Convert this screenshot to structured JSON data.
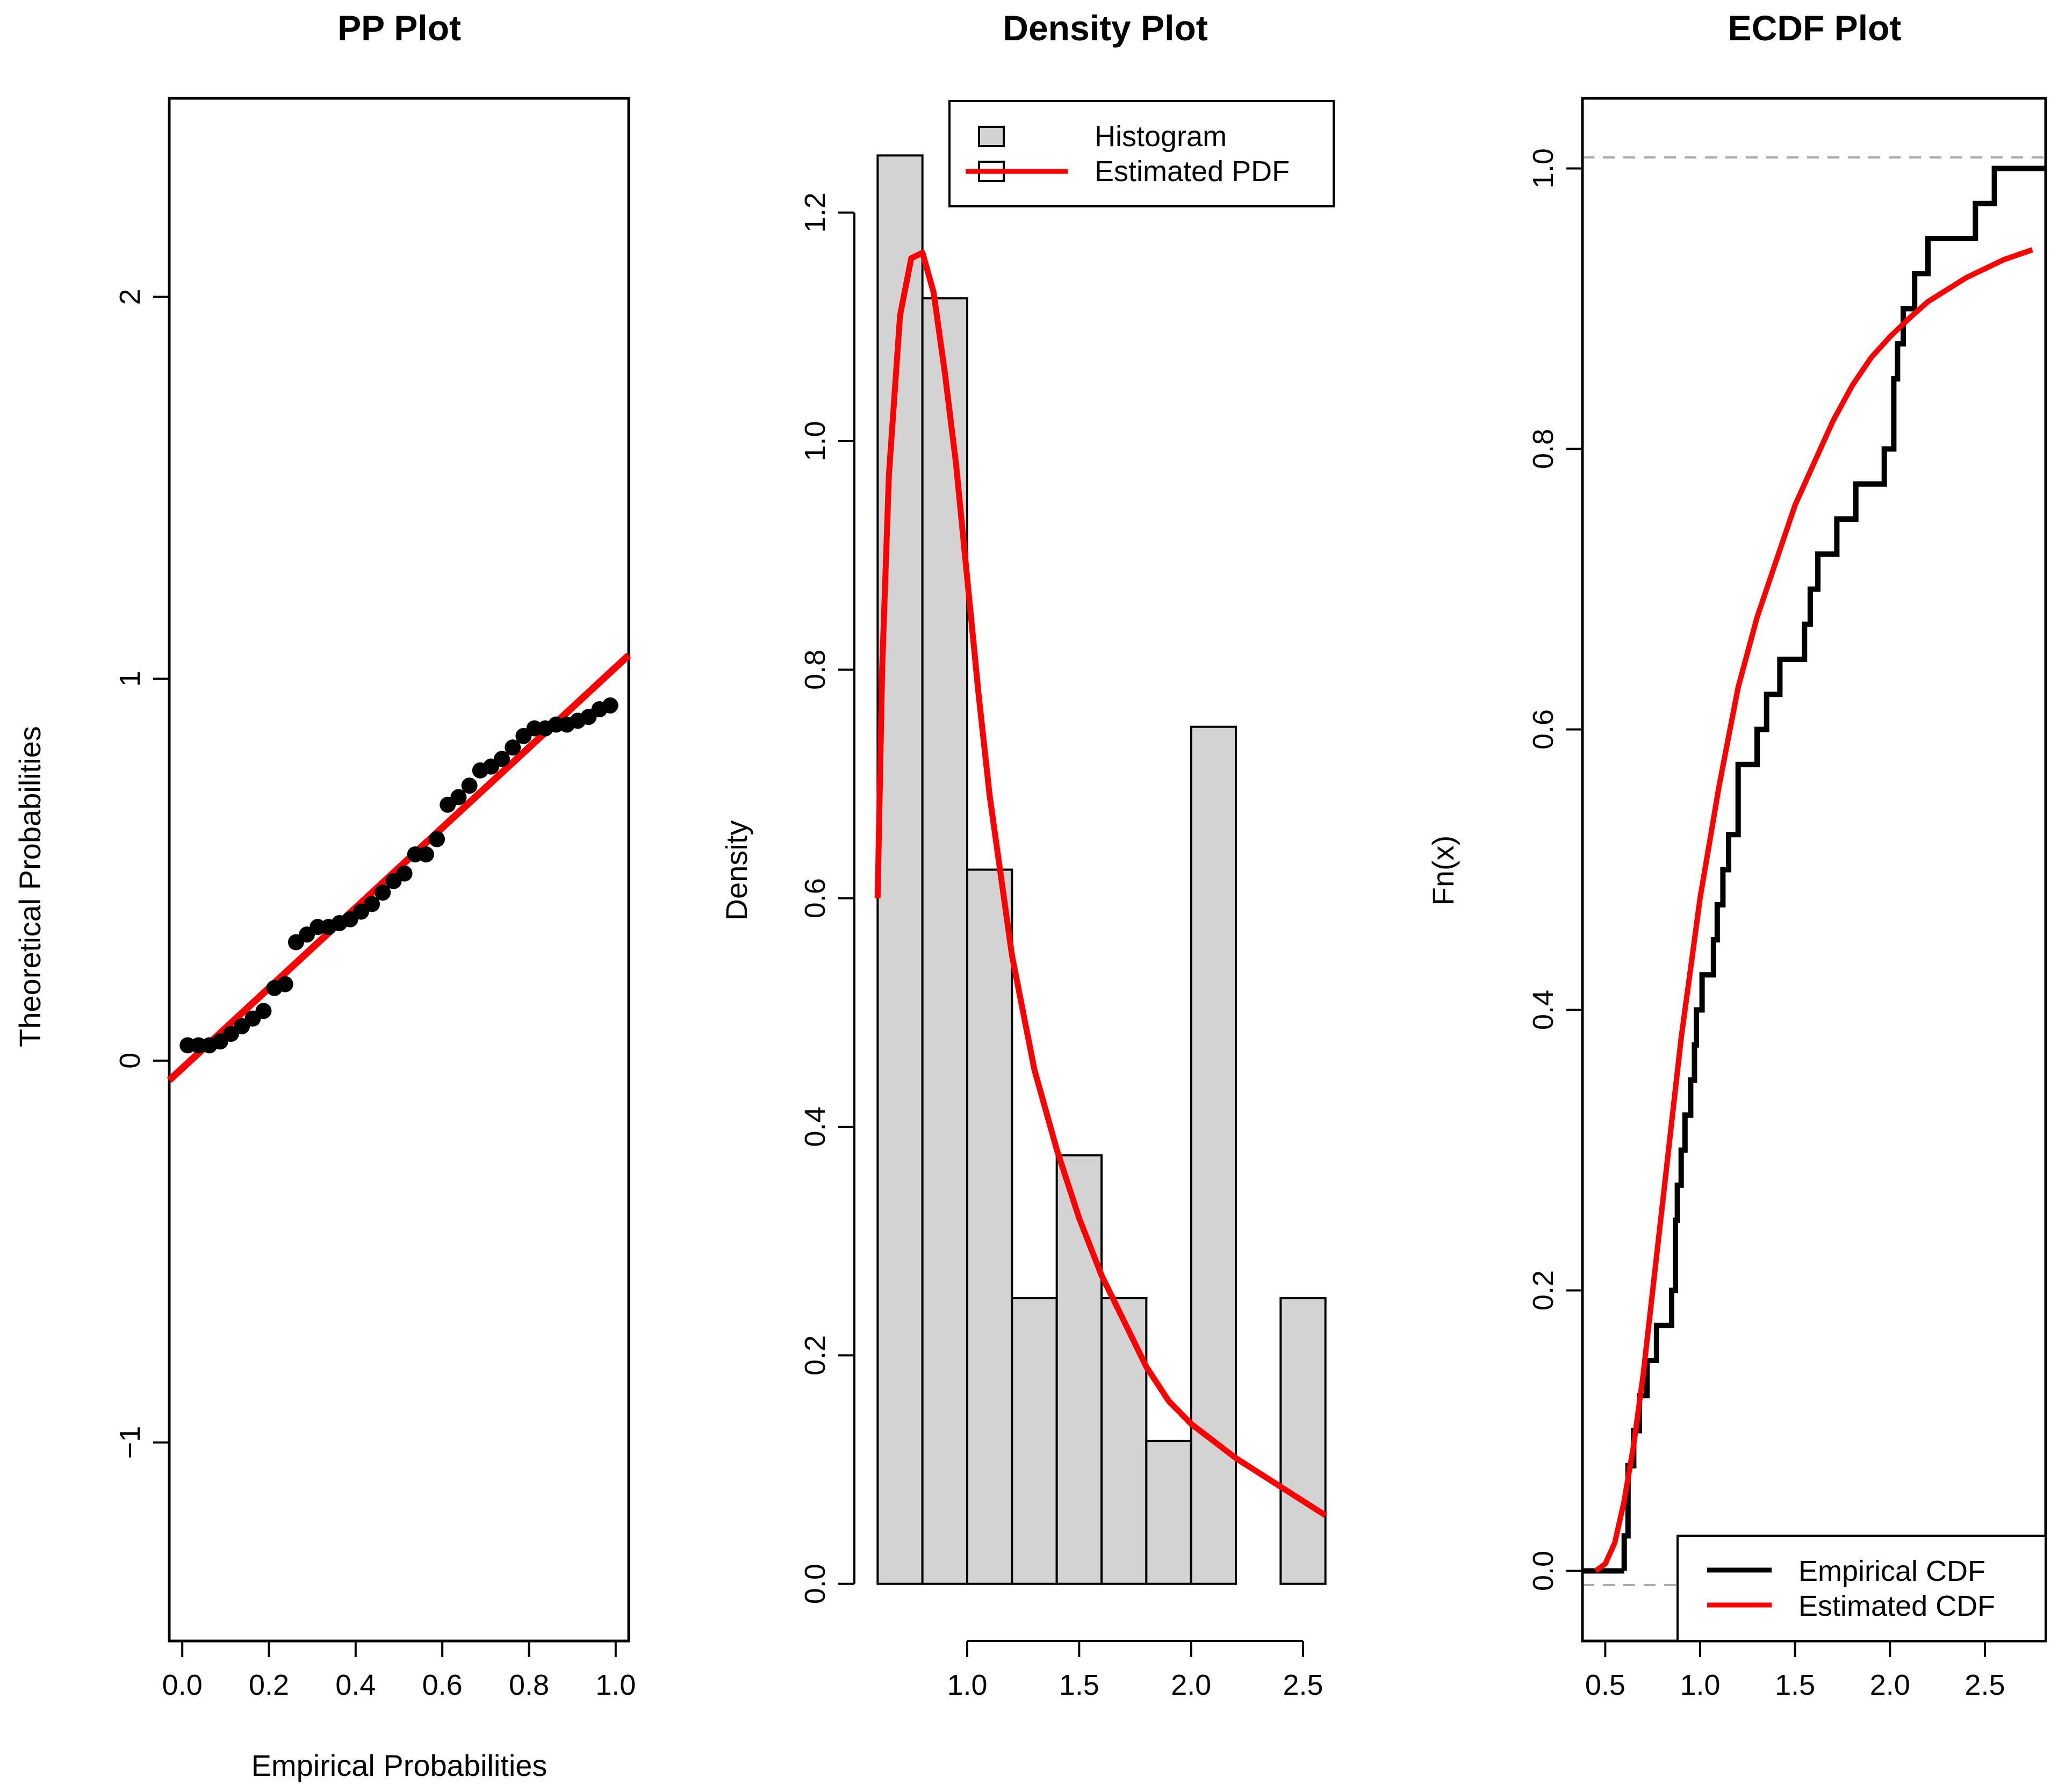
{
  "chart_data": [
    {
      "type": "scatter",
      "title": "PP Plot",
      "xlabel": "Empirical Probabilities",
      "ylabel": "Theoretical Probabilities",
      "xlim": [
        -0.03,
        1.03
      ],
      "ylim": [
        -1.52,
        2.52
      ],
      "xticks": [
        0.0,
        0.2,
        0.4,
        0.6,
        0.8,
        1.0
      ],
      "xtick_labels": [
        "0.0",
        "0.2",
        "0.4",
        "0.6",
        "0.8",
        "1.0"
      ],
      "yticks": [
        -1,
        0,
        1,
        2
      ],
      "ytick_labels": [
        "−1",
        "0",
        "1",
        "2"
      ],
      "points_x": [
        0.0125,
        0.0375,
        0.0625,
        0.0875,
        0.1125,
        0.1375,
        0.1625,
        0.1875,
        0.2125,
        0.2375,
        0.2625,
        0.2875,
        0.3125,
        0.3375,
        0.3625,
        0.3875,
        0.4125,
        0.4375,
        0.4625,
        0.4875,
        0.5125,
        0.5375,
        0.5625,
        0.5875,
        0.6125,
        0.6375,
        0.6625,
        0.6875,
        0.7125,
        0.7375,
        0.7625,
        0.7875,
        0.8125,
        0.8375,
        0.8625,
        0.8875,
        0.9125,
        0.9375,
        0.9625,
        0.9875
      ],
      "points_y": [
        0.04,
        0.04,
        0.04,
        0.05,
        0.07,
        0.09,
        0.11,
        0.13,
        0.19,
        0.2,
        0.31,
        0.33,
        0.35,
        0.35,
        0.36,
        0.37,
        0.39,
        0.41,
        0.44,
        0.47,
        0.49,
        0.54,
        0.54,
        0.58,
        0.67,
        0.69,
        0.72,
        0.76,
        0.77,
        0.79,
        0.82,
        0.85,
        0.87,
        0.87,
        0.88,
        0.88,
        0.89,
        0.9,
        0.92,
        0.93
      ],
      "fit_line": {
        "intercept": -0.02,
        "slope": 1.05,
        "color": "#ff0000"
      }
    },
    {
      "type": "bar",
      "title": "Density Plot",
      "xlabel": "",
      "ylabel": "Density",
      "xlim": [
        0.58,
        2.62
      ],
      "ylim": [
        -0.05,
        1.3
      ],
      "xticks": [
        1.0,
        1.5,
        2.0,
        2.5
      ],
      "xtick_labels": [
        "1.0",
        "1.5",
        "2.0",
        "2.5"
      ],
      "yticks": [
        0.0,
        0.2,
        0.4,
        0.6,
        0.8,
        1.0,
        1.2
      ],
      "ytick_labels": [
        "0.0",
        "0.2",
        "0.4",
        "0.6",
        "0.8",
        "1.0",
        "1.2"
      ],
      "bin_edges": [
        0.6,
        0.8,
        1.0,
        1.2,
        1.4,
        1.6,
        1.8,
        2.0,
        2.2,
        2.4,
        2.6
      ],
      "values": [
        1.25,
        1.125,
        0.625,
        0.25,
        0.375,
        0.25,
        0.125,
        0.75,
        0.0,
        0.25
      ],
      "bar_color": "#d3d3d3",
      "pdf_curve": {
        "name": "Estimated PDF",
        "color": "#ff0000",
        "x": [
          0.6,
          0.62,
          0.65,
          0.7,
          0.75,
          0.8,
          0.85,
          0.9,
          0.95,
          1.0,
          1.05,
          1.1,
          1.15,
          1.2,
          1.3,
          1.4,
          1.5,
          1.6,
          1.7,
          1.8,
          1.9,
          2.0,
          2.2,
          2.4,
          2.6
        ],
        "y": [
          0.6,
          0.8,
          0.97,
          1.11,
          1.16,
          1.165,
          1.13,
          1.06,
          0.98,
          0.88,
          0.78,
          0.69,
          0.62,
          0.55,
          0.45,
          0.38,
          0.32,
          0.27,
          0.23,
          0.19,
          0.16,
          0.14,
          0.11,
          0.085,
          0.06
        ]
      },
      "legend": {
        "position": "top-right",
        "items": [
          {
            "label": "Histogram",
            "kind": "fill"
          },
          {
            "label": "Estimated PDF",
            "kind": "line"
          }
        ]
      }
    },
    {
      "type": "line",
      "title": "ECDF Plot",
      "xlabel": "",
      "ylabel": "Fn(x)",
      "xlim": [
        0.38,
        2.82
      ],
      "ylim": [
        -0.05,
        1.05
      ],
      "xticks": [
        0.5,
        1.0,
        1.5,
        2.0,
        2.5
      ],
      "xtick_labels": [
        "0.5",
        "1.0",
        "1.5",
        "2.0",
        "2.5"
      ],
      "yticks": [
        0.0,
        0.2,
        0.4,
        0.6,
        0.8,
        1.0
      ],
      "ytick_labels": [
        "0.0",
        "0.2",
        "0.4",
        "0.6",
        "0.8",
        "1.0"
      ],
      "ecdf_jumps": [
        0.6,
        0.62,
        0.65,
        0.68,
        0.72,
        0.77,
        0.85,
        0.87,
        0.88,
        0.9,
        0.92,
        0.95,
        0.97,
        0.98,
        1.01,
        1.07,
        1.09,
        1.12,
        1.15,
        1.2,
        1.3,
        1.35,
        1.42,
        1.55,
        1.58,
        1.62,
        1.72,
        1.82,
        1.97,
        2.02,
        2.04,
        2.07,
        2.13,
        2.2,
        2.3,
        2.4,
        2.45,
        2.55
      ],
      "ecdf_levels": [
        0.025,
        0.075,
        0.1,
        0.125,
        0.15,
        0.175,
        0.2,
        0.25,
        0.275,
        0.3,
        0.325,
        0.35,
        0.375,
        0.4,
        0.425,
        0.45,
        0.475,
        0.5,
        0.525,
        0.575,
        0.6,
        0.625,
        0.65,
        0.675,
        0.7,
        0.725,
        0.75,
        0.775,
        0.8,
        0.85,
        0.875,
        0.9,
        0.925,
        0.95,
        0.95,
        0.95,
        0.975,
        1.0
      ],
      "cdf_curve": {
        "name": "Estimated CDF",
        "color": "#ff0000",
        "x": [
          0.45,
          0.5,
          0.55,
          0.6,
          0.65,
          0.7,
          0.75,
          0.8,
          0.85,
          0.9,
          0.95,
          1.0,
          1.05,
          1.1,
          1.2,
          1.3,
          1.4,
          1.5,
          1.6,
          1.7,
          1.8,
          1.9,
          2.0,
          2.1,
          2.2,
          2.4,
          2.6,
          2.75
        ],
        "y": [
          0.0,
          0.005,
          0.02,
          0.05,
          0.09,
          0.14,
          0.2,
          0.26,
          0.32,
          0.38,
          0.43,
          0.48,
          0.52,
          0.56,
          0.63,
          0.68,
          0.72,
          0.76,
          0.79,
          0.82,
          0.845,
          0.865,
          0.88,
          0.893,
          0.905,
          0.922,
          0.935,
          0.942
        ]
      },
      "legend": {
        "position": "bottom-right",
        "items": [
          {
            "label": "Empirical CDF",
            "color": "#000000"
          },
          {
            "label": "Estimated CDF",
            "color": "#ff0000"
          }
        ]
      }
    }
  ]
}
